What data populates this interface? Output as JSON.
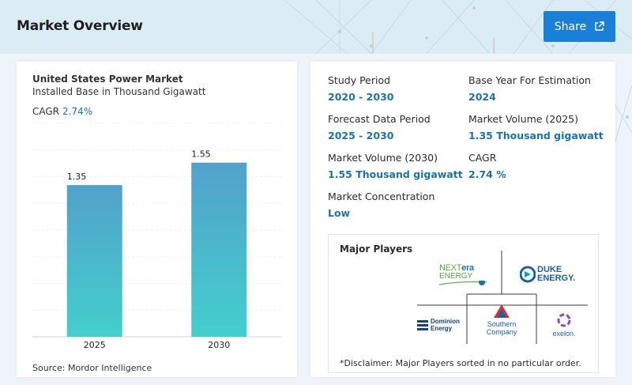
{
  "header": {
    "title": "Market Overview",
    "share_label": "Share"
  },
  "chart_card": {
    "title": "United States Power Market",
    "subtitle": "Installed Base in Thousand Gigawatt",
    "cagr_label": "CAGR",
    "cagr_value": "2.74%",
    "source": "Source: Mordor Intelligence"
  },
  "chart_data": {
    "type": "bar",
    "categories": [
      "2025",
      "2030"
    ],
    "values": [
      1.35,
      1.55
    ],
    "value_labels": [
      "1.35",
      "1.55"
    ],
    "title": "United States Power Market",
    "ylabel": "Installed Base in Thousand Gigawatt",
    "ylim": [
      0,
      1.9
    ],
    "grid": true,
    "colors": {
      "bar_top": "#52a1cb",
      "bar_bottom": "#43cfcc"
    }
  },
  "stats": {
    "study_period": {
      "label": "Study Period",
      "value": "2020 - 2030"
    },
    "base_year": {
      "label": "Base Year For Estimation",
      "value": "2024"
    },
    "forecast_period": {
      "label": "Forecast Data Period",
      "value": "2025 - 2030"
    },
    "volume_2025": {
      "label": "Market Volume (2025)",
      "value": "1.35 Thousand gigawatt"
    },
    "volume_2030": {
      "label": "Market Volume (2030)",
      "value": "1.55 Thousand gigawatt"
    },
    "cagr": {
      "label": "CAGR",
      "value": "2.74 %"
    },
    "concentration": {
      "label": "Market Concentration",
      "value": "Low"
    }
  },
  "players": {
    "title": "Major Players",
    "disclaimer": "*Disclaimer: Major Players sorted in no particular order.",
    "logos": {
      "nextera": {
        "line1a": "NEXT",
        "line1b": "era",
        "line2": "ENERGY"
      },
      "duke": {
        "line1": "DUKE",
        "line2": "ENERGY."
      },
      "dominion": {
        "line1": "Dominion",
        "line2": "Energy"
      },
      "southern": {
        "line1": "Southern",
        "line2": "Company"
      },
      "exelon": {
        "name": "exelon."
      }
    }
  },
  "colors": {
    "accent": "#1a74a8",
    "share_button": "#1a7fd6",
    "header_bg": "#dcecf5"
  }
}
